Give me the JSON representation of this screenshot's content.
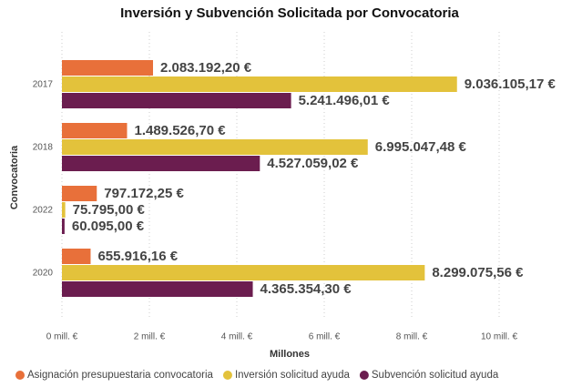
{
  "chart_data": {
    "type": "bar",
    "orientation": "horizontal",
    "title": "Inversión y Subvención Solicitada por Convocatoria",
    "x_label": "Millones",
    "y_label": "Convocatoria",
    "categories": [
      "2017",
      "2018",
      "2022",
      "2020"
    ],
    "series": [
      {
        "name": "Asignación presupuestaria convocatoria",
        "color": "#e8703a",
        "values": [
          2083192.2,
          1489526.7,
          797172.25,
          655916.16
        ],
        "value_labels": [
          "2.083.192,20 €",
          "1.489.526,70 €",
          "797.172,25 €",
          "655.916,16 €"
        ]
      },
      {
        "name": "Inversión solicitud ayuda",
        "color": "#e3c23b",
        "values": [
          9036105.17,
          6995047.48,
          75795.0,
          8299075.56
        ],
        "value_labels": [
          "9.036.105,17 €",
          "6.995.047,48 €",
          "75.795,00 €",
          "8.299.075,56 €"
        ]
      },
      {
        "name": "Subvención solicitud ayuda",
        "color": "#6b1d4f",
        "values": [
          5241496.01,
          4527059.02,
          60095.0,
          4365354.3
        ],
        "value_labels": [
          "5.241.496,01 €",
          "4.527.059,02 €",
          "60.095,00 €",
          "4.365.354,30 €"
        ]
      }
    ],
    "xlim": [
      0,
      11000000
    ],
    "xticks": [
      {
        "value": 0,
        "label": "0 mill. €"
      },
      {
        "value": 2000000,
        "label": "2 mill. €"
      },
      {
        "value": 4000000,
        "label": "4 mill. €"
      },
      {
        "value": 6000000,
        "label": "6 mill. €"
      },
      {
        "value": 8000000,
        "label": "8 mill. €"
      },
      {
        "value": 10000000,
        "label": "10 mill. €"
      }
    ],
    "grid": true,
    "legend": "bottom"
  }
}
